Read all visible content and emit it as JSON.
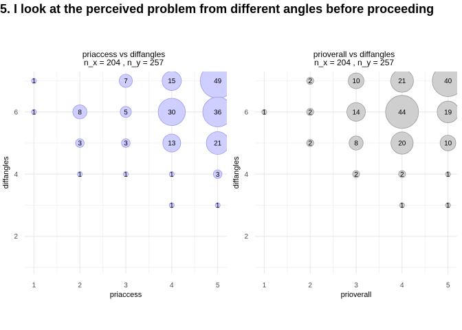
{
  "title": "5. I look at the perceived problem from different angles before proceeding",
  "chart_data": [
    {
      "type": "scatter",
      "subtype": "bubble",
      "title": "priaccess vs diffangles",
      "subtitle": "n_x = 204 , n_y = 257",
      "xlabel": "priaccess",
      "ylabel": "diffangles",
      "xticks": [
        1,
        2,
        3,
        4,
        5
      ],
      "yticks": [
        2,
        4,
        6
      ],
      "xlim": [
        0.8,
        5.2
      ],
      "ylim": [
        0.8,
        7.3
      ],
      "grid": true,
      "bubble_fill": "#ccccff",
      "bubble_stroke": "#9999ee",
      "points": [
        {
          "x": 1,
          "y": 7,
          "count": 1
        },
        {
          "x": 3,
          "y": 7,
          "count": 7
        },
        {
          "x": 4,
          "y": 7,
          "count": 15
        },
        {
          "x": 5,
          "y": 7,
          "count": 49
        },
        {
          "x": 1,
          "y": 6,
          "count": 1
        },
        {
          "x": 2,
          "y": 6,
          "count": 8
        },
        {
          "x": 3,
          "y": 6,
          "count": 5
        },
        {
          "x": 4,
          "y": 6,
          "count": 30
        },
        {
          "x": 5,
          "y": 6,
          "count": 36
        },
        {
          "x": 2,
          "y": 5,
          "count": 3
        },
        {
          "x": 3,
          "y": 5,
          "count": 3
        },
        {
          "x": 4,
          "y": 5,
          "count": 13
        },
        {
          "x": 5,
          "y": 5,
          "count": 21
        },
        {
          "x": 2,
          "y": 4,
          "count": 1
        },
        {
          "x": 3,
          "y": 4,
          "count": 1
        },
        {
          "x": 4,
          "y": 4,
          "count": 1
        },
        {
          "x": 5,
          "y": 4,
          "count": 3
        },
        {
          "x": 4,
          "y": 3,
          "count": 1
        },
        {
          "x": 5,
          "y": 3,
          "count": 1
        }
      ]
    },
    {
      "type": "scatter",
      "subtype": "bubble",
      "title": "prioverall vs diffangles",
      "subtitle": "n_x = 204 , n_y = 257",
      "xlabel": "prioverall",
      "ylabel": "diffangles",
      "xticks": [
        1,
        2,
        3,
        4,
        5
      ],
      "yticks": [
        2,
        4,
        6
      ],
      "xlim": [
        0.8,
        5.2
      ],
      "ylim": [
        0.8,
        7.3
      ],
      "grid": true,
      "bubble_fill": "#cccccc",
      "bubble_stroke": "#999999",
      "points": [
        {
          "x": 2,
          "y": 7,
          "count": 2
        },
        {
          "x": 3,
          "y": 7,
          "count": 10
        },
        {
          "x": 4,
          "y": 7,
          "count": 21
        },
        {
          "x": 5,
          "y": 7,
          "count": 40
        },
        {
          "x": 1,
          "y": 6,
          "count": 1
        },
        {
          "x": 2,
          "y": 6,
          "count": 2
        },
        {
          "x": 3,
          "y": 6,
          "count": 14
        },
        {
          "x": 4,
          "y": 6,
          "count": 44
        },
        {
          "x": 5,
          "y": 6,
          "count": 19
        },
        {
          "x": 2,
          "y": 5,
          "count": 2
        },
        {
          "x": 3,
          "y": 5,
          "count": 8
        },
        {
          "x": 4,
          "y": 5,
          "count": 20
        },
        {
          "x": 5,
          "y": 5,
          "count": 10
        },
        {
          "x": 3,
          "y": 4,
          "count": 2
        },
        {
          "x": 4,
          "y": 4,
          "count": 2
        },
        {
          "x": 5,
          "y": 4,
          "count": 1
        },
        {
          "x": 4,
          "y": 3,
          "count": 1
        },
        {
          "x": 5,
          "y": 3,
          "count": 1
        }
      ]
    }
  ]
}
